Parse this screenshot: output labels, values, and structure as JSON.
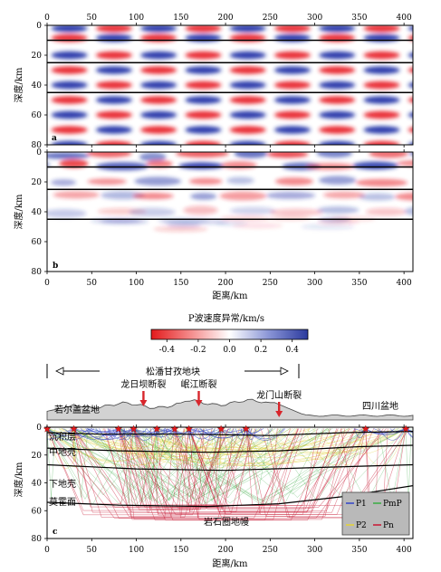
{
  "chart_data": [
    {
      "type": "heatmap",
      "panel_label": "a",
      "x_ticks": [
        "0",
        "50",
        "100",
        "150",
        "200",
        "250",
        "300",
        "350",
        "400"
      ],
      "y_ticks": [
        "0",
        "20",
        "40",
        "60",
        "80"
      ],
      "ylabel": "深度/km",
      "xlim": [
        0,
        410
      ],
      "ylim": [
        0,
        80
      ],
      "boundaries_km": [
        10,
        25,
        45
      ],
      "pattern": {
        "x_period_km": 100,
        "rows": [
          {
            "depth_km": 2,
            "phase": "blue-first"
          },
          {
            "depth_km": 8.5,
            "phase": "red-first"
          },
          {
            "depth_km": 20,
            "phase": "blue-first"
          },
          {
            "depth_km": 30,
            "phase": "red-first"
          },
          {
            "depth_km": 40,
            "phase": "blue-first"
          },
          {
            "depth_km": 50,
            "phase": "red-first"
          },
          {
            "depth_km": 60,
            "phase": "blue-first"
          },
          {
            "depth_km": 70,
            "phase": "red-first"
          },
          {
            "depth_km": 80,
            "phase": "blue-first"
          }
        ]
      }
    },
    {
      "type": "heatmap",
      "panel_label": "b",
      "x_ticks": [
        "0",
        "50",
        "100",
        "150",
        "200",
        "250",
        "300",
        "350",
        "400"
      ],
      "y_ticks": [
        "0",
        "20",
        "40",
        "60",
        "80"
      ],
      "xlabel": "距离/km",
      "ylabel": "深度/km",
      "xlim": [
        0,
        410
      ],
      "ylim": [
        0,
        80
      ],
      "boundaries_km": [
        10,
        25,
        45
      ]
    },
    {
      "type": "colorbar",
      "title": "P波速度异常/km/s",
      "ticks": [
        "-0.4",
        "-0.2",
        "0.0",
        "0.2",
        "0.4"
      ],
      "range": [
        -0.5,
        0.5
      ],
      "colors": [
        "#e31a1c",
        "#ffffff",
        "#2b3a9e"
      ]
    },
    {
      "type": "ray_diagram",
      "panel_label": "c",
      "x_ticks": [
        "0",
        "50",
        "100",
        "150",
        "200",
        "250",
        "300",
        "350",
        "400"
      ],
      "y_ticks": [
        "0",
        "20",
        "40",
        "60",
        "80"
      ],
      "xlabel": "距离/km",
      "ylabel": "深度/km",
      "xlim": [
        0,
        410
      ],
      "ylim": [
        0,
        80
      ],
      "region_title": "松潘甘孜地块",
      "faults": [
        {
          "name": "龙日坝断裂",
          "x_km": 108
        },
        {
          "name": "岷江断裂",
          "x_km": 170
        },
        {
          "name": "龙门山断裂",
          "x_km": 260
        }
      ],
      "basins": {
        "left": "若尔盖盆地",
        "right": "四川盆地"
      },
      "layers": [
        "沉积层",
        "中地壳",
        "下地壳",
        "莫霍面",
        "岩石圈地幔"
      ],
      "stations_km": [
        0,
        30,
        80,
        97,
        123,
        143,
        159,
        195,
        223,
        357,
        402
      ],
      "legend": [
        {
          "label": "P1",
          "color": "#3a4bc8"
        },
        {
          "label": "PmP",
          "color": "#3fae49"
        },
        {
          "label": "P2",
          "color": "#e2d23a"
        },
        {
          "label": "Pn",
          "color": "#c8203a"
        }
      ]
    }
  ]
}
